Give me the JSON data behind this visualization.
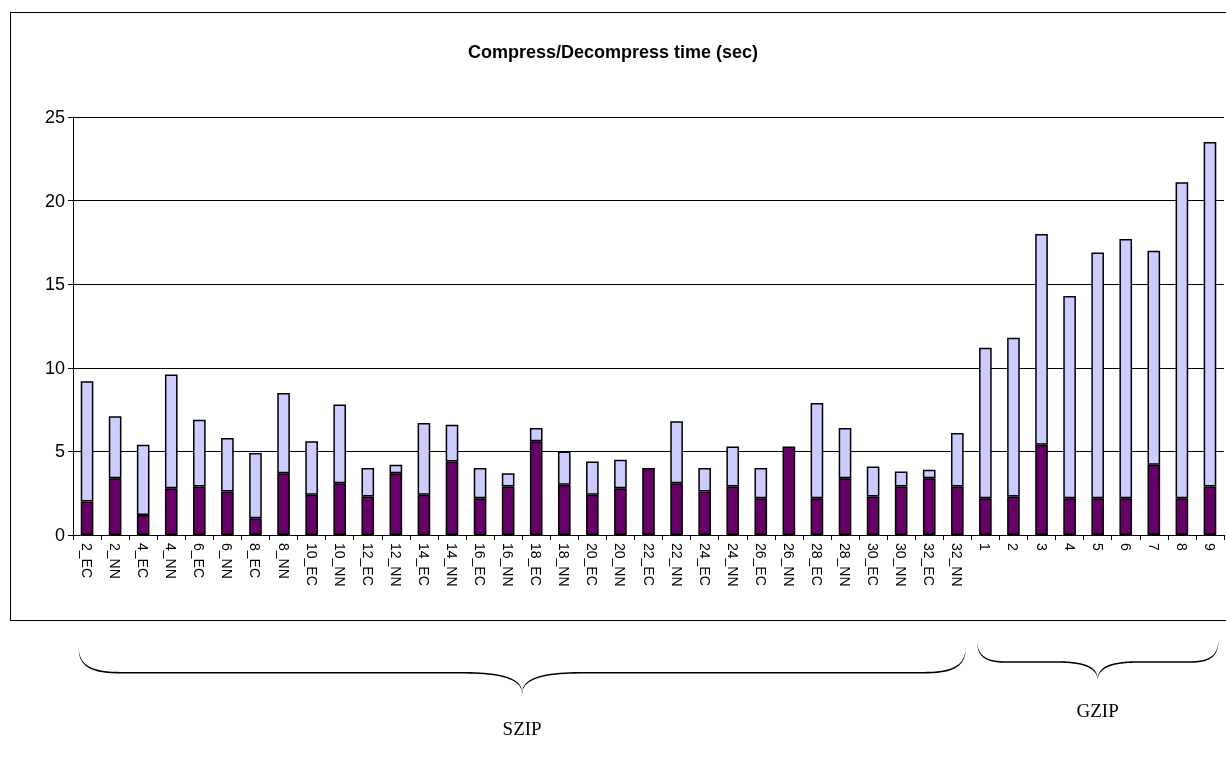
{
  "chart_data": {
    "type": "bar",
    "title": "Compress/Decompress time (sec)",
    "categories": [
      "2_EC",
      "2_NN",
      "4_EC",
      "4_NN",
      "6_EC",
      "6_NN",
      "8_EC",
      "8_NN",
      "10_EC",
      "10_NN",
      "12_EC",
      "12_NN",
      "14_EC",
      "14_NN",
      "16_EC",
      "16_NN",
      "18_EC",
      "18_NN",
      "20_EC",
      "20_NN",
      "22_EC",
      "22_NN",
      "24_EC",
      "24_NN",
      "26_EC",
      "26_NN",
      "28_EC",
      "28_NN",
      "30_EC",
      "30_NN",
      "32_EC",
      "32_NN",
      "1",
      "2",
      "3",
      "4",
      "5",
      "6",
      "7",
      "8",
      "9"
    ],
    "stacked": true,
    "series": [
      {
        "color": "#660066",
        "values": [
          2.0,
          3.4,
          1.2,
          2.8,
          2.9,
          2.6,
          1.0,
          3.7,
          2.4,
          3.1,
          2.3,
          3.7,
          2.4,
          4.4,
          2.2,
          2.9,
          5.6,
          3.0,
          2.4,
          2.8,
          4.0,
          3.1,
          2.6,
          2.9,
          2.2,
          5.3,
          2.2,
          3.4,
          2.3,
          2.9,
          3.4,
          2.9,
          2.2,
          2.3,
          5.4,
          2.2,
          2.2,
          2.2,
          4.2,
          2.2,
          2.9
        ]
      },
      {
        "color": "#ccccff",
        "values": [
          7.2,
          3.7,
          4.2,
          6.8,
          4.0,
          3.2,
          3.9,
          4.8,
          3.2,
          4.7,
          1.7,
          0.5,
          4.3,
          2.2,
          1.8,
          0.8,
          0.8,
          2.0,
          2.0,
          1.7,
          0,
          3.7,
          1.4,
          2.4,
          1.8,
          0,
          5.7,
          3.0,
          1.8,
          0.9,
          0.5,
          3.2,
          9.0,
          9.5,
          12.6,
          12.1,
          14.7,
          15.5,
          12.8,
          18.9,
          20.6
        ]
      }
    ],
    "ylim": [
      0,
      25
    ],
    "yticks": [
      0,
      5,
      10,
      15,
      20,
      25
    ],
    "grid": "y",
    "annotations": [
      "SZIP",
      "GZIP"
    ]
  }
}
